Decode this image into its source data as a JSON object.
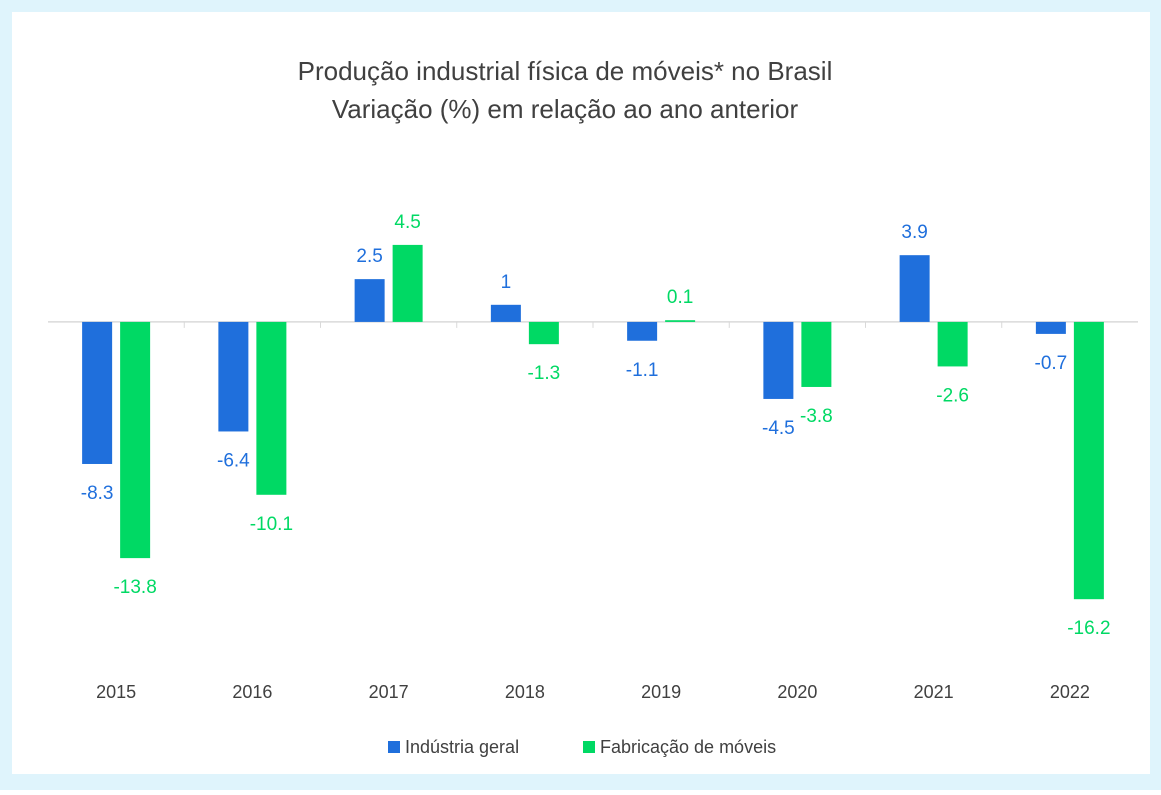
{
  "chart_data": {
    "type": "bar",
    "title": "Produção industrial física de móveis* no Brasil",
    "subtitle": "Variação (%) em relação ao ano anterior",
    "categories": [
      "2015",
      "2016",
      "2017",
      "2018",
      "2019",
      "2020",
      "2021",
      "2022"
    ],
    "series": [
      {
        "name": "Indústria geral",
        "color": "#1f6fdc",
        "values": [
          -8.3,
          -6.4,
          2.5,
          1,
          -1.1,
          -4.5,
          3.9,
          -0.7
        ]
      },
      {
        "name": "Fabricação de móveis",
        "color": "#00d964",
        "values": [
          -13.8,
          -10.1,
          4.5,
          -1.3,
          0.1,
          -3.8,
          -2.6,
          -16.2
        ]
      }
    ],
    "ylim": [
      -18,
      8
    ],
    "legend": "bottom"
  }
}
